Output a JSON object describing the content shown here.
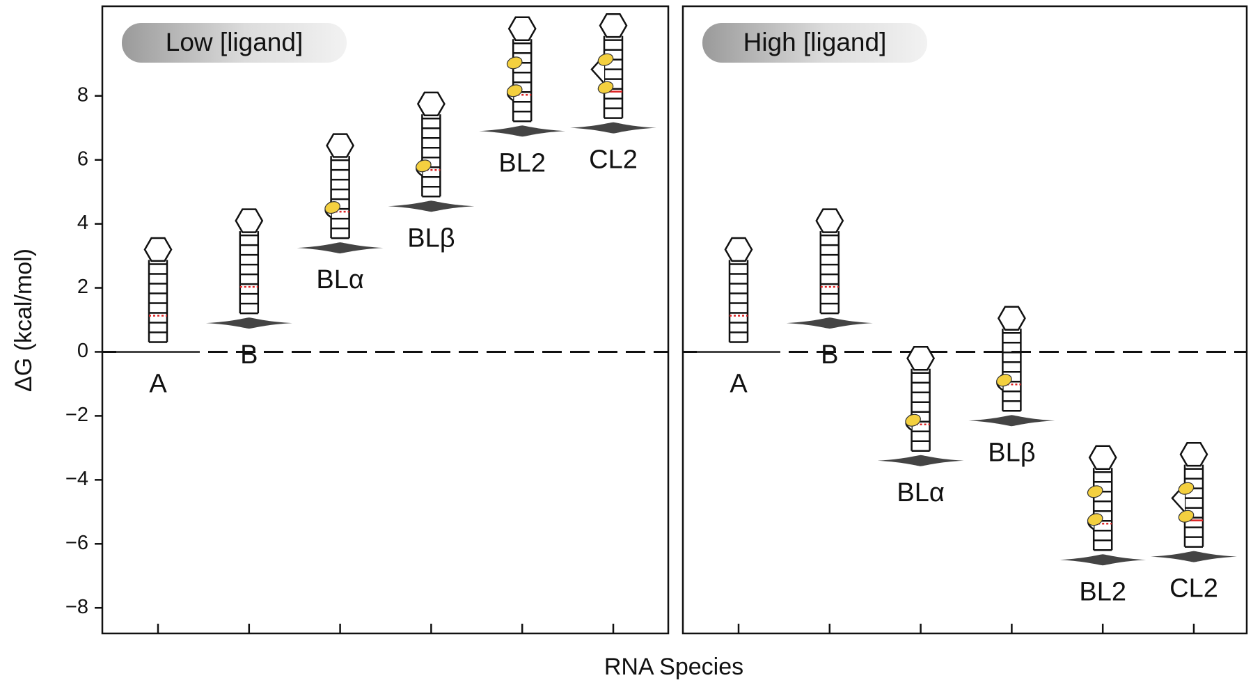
{
  "chart_data": [
    {
      "type": "violin",
      "title": "Low [ligand]",
      "ylabel": "ΔG (kcal/mol)",
      "xlabel": "RNA Species",
      "categories": [
        "A",
        "B",
        "BLα",
        "BLβ",
        "BL2",
        "CL2"
      ],
      "values": [
        0,
        0.9,
        3.25,
        4.55,
        6.9,
        7.0
      ],
      "color": "#444444",
      "ylim": [
        -8.8,
        10.8
      ],
      "yticks": [
        {
          "value": -8,
          "label": "−8"
        },
        {
          "value": -6,
          "label": "−6"
        },
        {
          "value": -4,
          "label": "−4"
        },
        {
          "value": -2,
          "label": "−2"
        },
        0,
        2,
        4,
        6,
        8
      ]
    },
    {
      "type": "violin",
      "title": "High [ligand]",
      "categories": [
        "A",
        "B",
        "BLα",
        "BLβ",
        "BL2",
        "CL2"
      ],
      "values": [
        0,
        0.9,
        -3.4,
        -2.15,
        -6.5,
        -6.4
      ],
      "color": "#444444",
      "ylim": [
        -8.8,
        10.8
      ]
    }
  ]
}
